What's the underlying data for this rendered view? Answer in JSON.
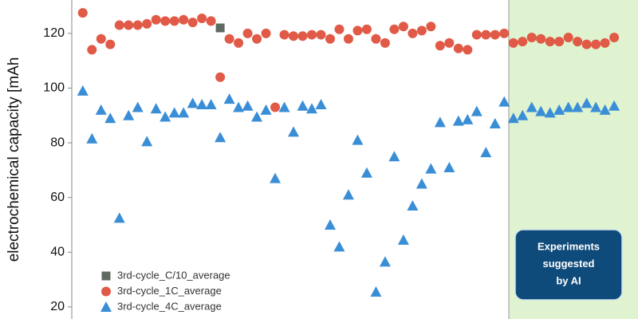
{
  "chart_data": {
    "type": "scatter",
    "ylabel": "electrochemical capacity [mAh",
    "x": [
      1,
      2,
      3,
      4,
      5,
      6,
      7,
      8,
      9,
      10,
      11,
      12,
      13,
      14,
      15,
      16,
      17,
      18,
      19,
      20,
      21,
      22,
      23,
      24,
      25,
      26,
      27,
      28,
      29,
      30,
      31,
      32,
      33,
      34,
      35,
      36,
      37,
      38,
      39,
      40,
      41,
      42,
      43,
      44,
      45,
      46,
      47,
      48,
      49,
      50,
      51,
      52,
      53,
      54,
      55,
      56,
      57,
      58,
      59
    ],
    "xlim": [
      -0.2,
      61.6
    ],
    "ylim": [
      15.6,
      132.2
    ],
    "yticks": [
      20,
      40,
      60,
      80,
      100,
      120
    ],
    "legend": "lower left",
    "highlight_x": [
      47.5,
      61.6
    ],
    "highlight_color": "#dff3d0",
    "annotation": [
      "Experiments",
      "suggested",
      "by AI"
    ],
    "series": [
      {
        "name": "3rd-cycle_C/10_average",
        "color": "#5f6a63",
        "marker": "square",
        "values": [
          null,
          null,
          null,
          null,
          null,
          null,
          null,
          null,
          null,
          null,
          null,
          null,
          null,
          null,
          null,
          122,
          null,
          null,
          null,
          null,
          null,
          null,
          null,
          null,
          null,
          null,
          null,
          null,
          null,
          null,
          null,
          null,
          null,
          null,
          null,
          null,
          null,
          null,
          null,
          null,
          null,
          null,
          null,
          null,
          null,
          null,
          null,
          null,
          null,
          null,
          null,
          null,
          null,
          null,
          null,
          null,
          null,
          null,
          null
        ]
      },
      {
        "name": "3rd-cycle_1C_average",
        "color": "#e05a47",
        "marker": "circle",
        "values": [
          127.5,
          114,
          118,
          116,
          123,
          123,
          123,
          123.5,
          125,
          124.5,
          124.5,
          125,
          124,
          125.5,
          124.5,
          104,
          118,
          116.5,
          120,
          118,
          120,
          93,
          119.5,
          119,
          119,
          119.5,
          119.5,
          118,
          121.5,
          118,
          121,
          121.5,
          118,
          116.5,
          121.5,
          122.5,
          120,
          121,
          122.5,
          115.5,
          116.5,
          114.5,
          114,
          119.5,
          119.5,
          119.5,
          120,
          116.5,
          117,
          118.5,
          118,
          117,
          117,
          118.5,
          117,
          116,
          116,
          116.5,
          118.5
        ]
      },
      {
        "name": "3rd-cycle_4C_average",
        "color": "#3a8ed6",
        "marker": "triangle",
        "values": [
          99,
          81.5,
          92,
          89,
          52.5,
          90,
          93,
          80.5,
          92.5,
          89.5,
          91,
          91,
          94.5,
          94,
          94,
          82,
          96,
          93,
          93.5,
          89.5,
          92,
          67,
          93,
          84,
          93.5,
          92.5,
          94,
          50,
          42,
          61,
          81,
          69,
          25.5,
          36.5,
          75,
          44.5,
          57,
          65,
          70.5,
          87.5,
          71,
          88,
          88.5,
          91.5,
          76.5,
          87,
          95,
          89,
          90,
          93,
          91.5,
          91,
          92,
          93,
          93,
          94.5,
          93,
          92,
          93.5
        ]
      }
    ]
  }
}
